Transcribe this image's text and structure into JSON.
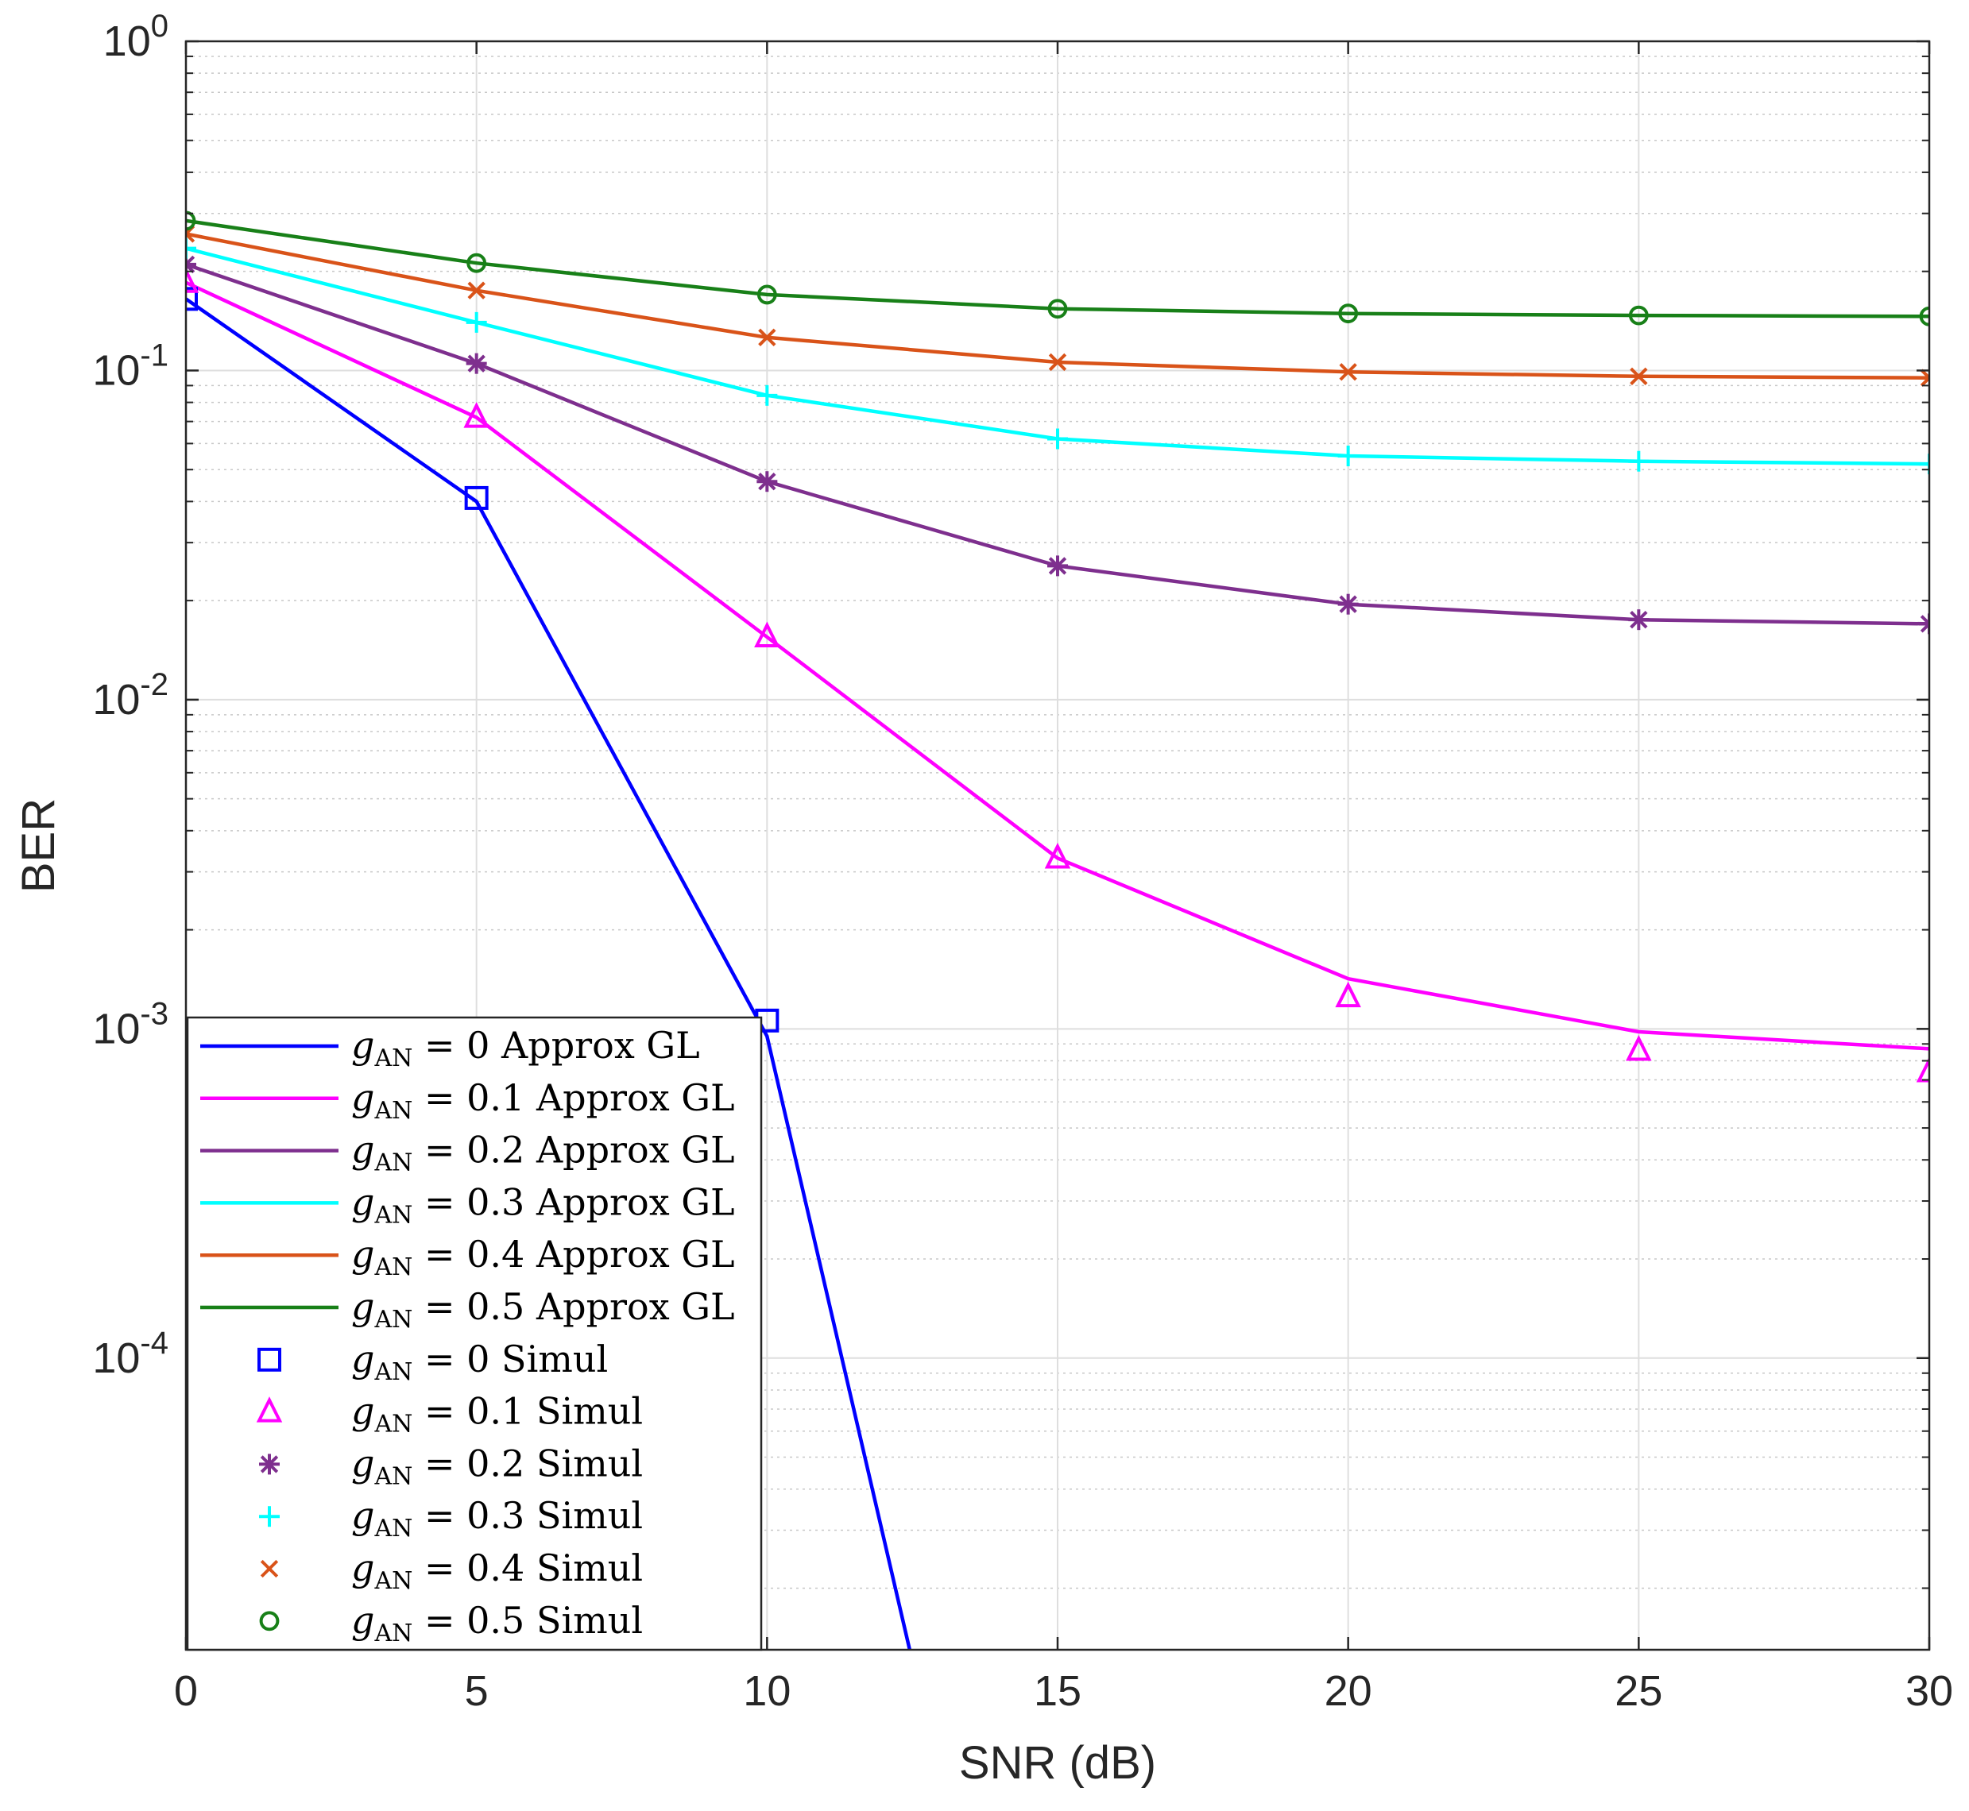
{
  "chart_data": {
    "type": "line",
    "title": "",
    "xlabel": "SNR (dB)",
    "ylabel": "BER",
    "yscale": "log",
    "xlim": [
      0,
      30
    ],
    "ylim": [
      1.3e-05,
      1
    ],
    "grid": true,
    "x_ticks": [
      0,
      5,
      10,
      15,
      20,
      25,
      30
    ],
    "x_tick_labels": [
      "0",
      "5",
      "10",
      "15",
      "20",
      "25",
      "30"
    ],
    "y_ticks": [
      {
        "value": 1,
        "base": "10",
        "exp": "0"
      },
      {
        "value": 0.1,
        "base": "10",
        "exp": "-1"
      },
      {
        "value": 0.01,
        "base": "10",
        "exp": "-2"
      },
      {
        "value": 0.001,
        "base": "10",
        "exp": "-3"
      },
      {
        "value": 0.0001,
        "base": "10",
        "exp": "-4"
      }
    ],
    "legend_position": "bottom-left",
    "legend_prefix": "g",
    "legend_sub": "AN",
    "series": [
      {
        "name": "g_AN = 0 Approx GL",
        "g": "0",
        "kind": "Approx GL",
        "style": "line",
        "color": "#0000ff",
        "x": [
          0,
          5,
          10,
          12.5
        ],
        "y": [
          0.165,
          0.04,
          0.00095,
          1.2e-05
        ]
      },
      {
        "name": "g_AN = 0.1 Approx GL",
        "g": "0.1",
        "kind": "Approx GL",
        "style": "line",
        "color": "#ff00ff",
        "x": [
          0,
          5,
          10,
          15,
          20,
          25,
          30
        ],
        "y": [
          0.185,
          0.072,
          0.0155,
          0.0033,
          0.00142,
          0.00098,
          0.00087
        ]
      },
      {
        "name": "g_AN = 0.2 Approx GL",
        "g": "0.2",
        "kind": "Approx GL",
        "style": "line",
        "color": "#7e2f8e",
        "x": [
          0,
          5,
          10,
          15,
          20,
          25,
          30
        ],
        "y": [
          0.21,
          0.105,
          0.046,
          0.0255,
          0.0195,
          0.0175,
          0.017
        ]
      },
      {
        "name": "g_AN = 0.3 Approx GL",
        "g": "0.3",
        "kind": "Approx GL",
        "style": "line",
        "color": "#00ffff",
        "x": [
          0,
          5,
          10,
          15,
          20,
          25,
          30
        ],
        "y": [
          0.235,
          0.14,
          0.084,
          0.062,
          0.055,
          0.053,
          0.052
        ]
      },
      {
        "name": "g_AN = 0.4 Approx GL",
        "g": "0.4",
        "kind": "Approx GL",
        "style": "line",
        "color": "#d95319",
        "x": [
          0,
          5,
          10,
          15,
          20,
          25,
          30
        ],
        "y": [
          0.26,
          0.175,
          0.126,
          0.106,
          0.099,
          0.096,
          0.095
        ]
      },
      {
        "name": "g_AN = 0.5 Approx GL",
        "g": "0.5",
        "kind": "Approx GL",
        "style": "line",
        "color": "#188018",
        "x": [
          0,
          5,
          10,
          15,
          20,
          25,
          30
        ],
        "y": [
          0.285,
          0.212,
          0.17,
          0.154,
          0.149,
          0.147,
          0.146
        ]
      },
      {
        "name": "g_AN = 0 Simul",
        "g": "0",
        "kind": "Simul",
        "style": "marker",
        "marker": "square",
        "color": "#0000ff",
        "x": [
          0,
          5,
          10
        ],
        "y": [
          0.165,
          0.041,
          0.00106
        ]
      },
      {
        "name": "g_AN = 0.1 Simul",
        "g": "0.1",
        "kind": "Simul",
        "style": "marker",
        "marker": "triangle",
        "color": "#ff00ff",
        "x": [
          0,
          5,
          10,
          15,
          20,
          25,
          30
        ],
        "y": [
          0.185,
          0.072,
          0.0155,
          0.0033,
          0.00125,
          0.00086,
          0.00074
        ]
      },
      {
        "name": "g_AN = 0.2 Simul",
        "g": "0.2",
        "kind": "Simul",
        "style": "marker",
        "marker": "asterisk",
        "color": "#7e2f8e",
        "x": [
          0,
          5,
          10,
          15,
          20,
          25,
          30
        ],
        "y": [
          0.21,
          0.105,
          0.046,
          0.0255,
          0.0195,
          0.0175,
          0.017
        ]
      },
      {
        "name": "g_AN = 0.3 Simul",
        "g": "0.3",
        "kind": "Simul",
        "style": "marker",
        "marker": "plus",
        "color": "#00ffff",
        "x": [
          0,
          5,
          10,
          15,
          20,
          25,
          30
        ],
        "y": [
          0.235,
          0.14,
          0.084,
          0.062,
          0.055,
          0.053,
          0.052
        ]
      },
      {
        "name": "g_AN = 0.4 Simul",
        "g": "0.4",
        "kind": "Simul",
        "style": "marker",
        "marker": "x",
        "color": "#d95319",
        "x": [
          0,
          5,
          10,
          15,
          20,
          25,
          30
        ],
        "y": [
          0.26,
          0.175,
          0.126,
          0.106,
          0.099,
          0.096,
          0.095
        ]
      },
      {
        "name": "g_AN = 0.5 Simul",
        "g": "0.5",
        "kind": "Simul",
        "style": "marker",
        "marker": "circle",
        "color": "#188018",
        "x": [
          0,
          5,
          10,
          15,
          20,
          25,
          30
        ],
        "y": [
          0.285,
          0.212,
          0.17,
          0.154,
          0.149,
          0.147,
          0.146
        ]
      }
    ]
  }
}
